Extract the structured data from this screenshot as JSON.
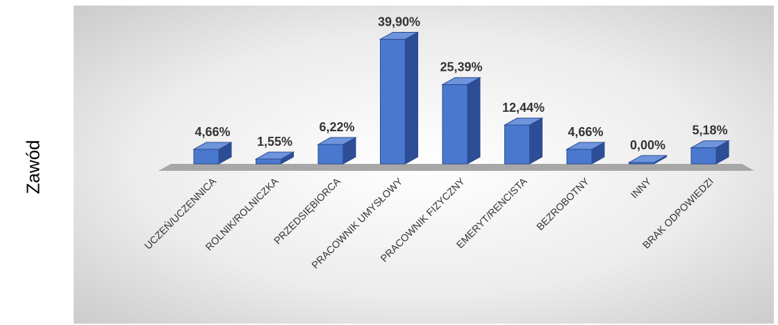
{
  "chart_data": {
    "type": "bar",
    "ylabel": "Zawód",
    "categories": [
      "UCZEŃ/UCZENNICA",
      "ROLNIK/ROLNICZKA",
      "PRZEDSIĘBIORCA",
      "PRACOWNIK UMYSŁOWY",
      "PRACOWNIK FIZYCZNY",
      "EMERYT/RENCISTA",
      "BEZROBOTNY",
      "INNY",
      "BRAK ODPOWIEDZI"
    ],
    "values": [
      4.66,
      1.55,
      6.22,
      39.9,
      25.39,
      12.44,
      4.66,
      0.0,
      5.18
    ],
    "labels": [
      "4,66%",
      "1,55%",
      "6,22%",
      "39,90%",
      "25,39%",
      "12,44%",
      "4,66%",
      "0,00%",
      "5,18%"
    ],
    "ylim": [
      0,
      40
    ],
    "grid": false,
    "legend": "none",
    "colors": {
      "bar_front": "#4a78cf",
      "bar_side": "#2d4e96",
      "bar_top": "#6d94dc",
      "floor": "#a7a7a7",
      "background_light": "#ffffff",
      "background_dark": "#c9c9c9"
    }
  }
}
